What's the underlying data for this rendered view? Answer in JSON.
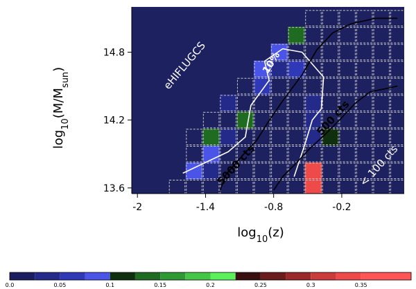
{
  "colors": {
    "background": "#1d2160",
    "outline_dashed": "#c8c8c8",
    "contour_white": "#ffffff",
    "contour_black": "#000000"
  },
  "chart_data": [
    {
      "type": "heatmap",
      "title": "",
      "xlabel": "log10(z)",
      "ylabel": "log10(M/Msun)",
      "xlim": [
        -2.05,
        0.35
      ],
      "ylim": [
        13.55,
        15.2
      ],
      "x_ticks": [
        "-2",
        "-1.4",
        "-0.8",
        "-0.2"
      ],
      "x_tick_values": [
        -2,
        -1.4,
        -0.8,
        -0.2
      ],
      "y_ticks": [
        "13.6",
        "14.2",
        "14.8"
      ],
      "y_tick_values": [
        13.6,
        14.2,
        14.8
      ],
      "grid": false,
      "cell_width_dex": 0.15,
      "cell_height_dex": 0.15,
      "fraction_cells": [
        {
          "x": -1.05,
          "y": 14.2,
          "value": 0.14
        },
        {
          "x": -1.35,
          "y": 14.05,
          "value": 0.13
        },
        {
          "x": -0.9,
          "y": 14.65,
          "value": 0.09
        },
        {
          "x": -0.75,
          "y": 14.8,
          "value": 0.09
        },
        {
          "x": -0.6,
          "y": 14.95,
          "value": 0.14
        },
        {
          "x": -0.6,
          "y": 14.65,
          "value": 0.05
        },
        {
          "x": -0.9,
          "y": 14.5,
          "value": 0.05
        },
        {
          "x": -0.75,
          "y": 14.65,
          "value": 0.03
        },
        {
          "x": -0.45,
          "y": 14.35,
          "value": 0.03
        },
        {
          "x": -0.45,
          "y": 14.2,
          "value": 0.04
        },
        {
          "x": -0.45,
          "y": 14.05,
          "value": 0.04
        },
        {
          "x": -0.3,
          "y": 14.05,
          "value": 0.11
        },
        {
          "x": -1.2,
          "y": 14.05,
          "value": 0.04
        },
        {
          "x": -1.35,
          "y": 13.9,
          "value": 0.09
        },
        {
          "x": -1.5,
          "y": 13.75,
          "value": 0.09
        },
        {
          "x": -1.35,
          "y": 13.75,
          "value": 0.04
        },
        {
          "x": -1.2,
          "y": 14.35,
          "value": 0.04
        },
        {
          "x": -0.45,
          "y": 13.75,
          "value": 0.33
        },
        {
          "x": -0.45,
          "y": 13.6,
          "value": 0.33
        }
      ],
      "outlined_region_bounds": {
        "note": "dashed outlined bins follow the observed-cluster staircase",
        "row_min_x": [
          {
            "y": 13.6,
            "x_min": -1.65
          },
          {
            "y": 13.75,
            "x_min": -1.5
          },
          {
            "y": 13.9,
            "x_min": -1.5
          },
          {
            "y": 14.05,
            "x_min": -1.5
          },
          {
            "y": 14.2,
            "x_min": -1.35
          },
          {
            "y": 14.35,
            "x_min": -1.2
          },
          {
            "y": 14.5,
            "x_min": -1.05
          },
          {
            "y": 14.65,
            "x_min": -0.9
          },
          {
            "y": 14.8,
            "x_min": -0.75
          },
          {
            "y": 14.95,
            "x_min": -0.6
          },
          {
            "y": 15.1,
            "x_min": -0.45
          }
        ],
        "x_max": 0.3
      },
      "contours": [
        {
          "label": "10%",
          "color": "white",
          "points": [
            [
              -1.6,
              13.73
            ],
            [
              -1.2,
              13.92
            ],
            [
              -1.05,
              14.05
            ],
            [
              -1.0,
              14.33
            ],
            [
              -0.84,
              14.55
            ],
            [
              -0.88,
              14.72
            ],
            [
              -0.72,
              14.83
            ],
            [
              -0.55,
              14.8
            ],
            [
              -0.36,
              14.58
            ],
            [
              -0.38,
              14.3
            ],
            [
              -0.46,
              14.2
            ],
            [
              -0.52,
              14.0
            ],
            [
              -0.62,
              13.7
            ]
          ]
        },
        {
          "label": "5000 cts",
          "color": "black",
          "points": [
            [
              -1.27,
              13.58
            ],
            [
              -1.22,
              13.72
            ],
            [
              -1.08,
              13.88
            ],
            [
              -0.95,
              14.02
            ],
            [
              -0.85,
              14.18
            ],
            [
              -0.72,
              14.37
            ],
            [
              -0.55,
              14.6
            ],
            [
              -0.42,
              14.82
            ],
            [
              -0.28,
              14.97
            ],
            [
              -0.12,
              15.05
            ],
            [
              0.1,
              15.1
            ],
            [
              0.29,
              15.1
            ]
          ]
        },
        {
          "label": "500 cts",
          "color": "black",
          "points": [
            [
              -0.8,
              13.58
            ],
            [
              -0.72,
              13.7
            ],
            [
              -0.6,
              13.82
            ],
            [
              -0.48,
              13.95
            ],
            [
              -0.35,
              14.07
            ],
            [
              -0.22,
              14.2
            ],
            [
              -0.08,
              14.35
            ],
            [
              0.05,
              14.45
            ],
            [
              0.2,
              14.48
            ],
            [
              0.29,
              14.5
            ]
          ]
        }
      ],
      "annotations": [
        "eHIFLUGCS",
        "10%",
        "5000 cts",
        "500 cts",
        "< 100 cts"
      ]
    },
    {
      "type": "colorbar",
      "orientation": "horizontal",
      "range": [
        0,
        0.4
      ],
      "tick_labels": [
        "0.0",
        "0.05",
        "0.1",
        "0.15",
        "0.2",
        "0.25",
        "0.3",
        "0.35"
      ],
      "tick_values": [
        0,
        0.05,
        0.1,
        0.15,
        0.2,
        0.25,
        0.3,
        0.35
      ],
      "segments": [
        {
          "from": 0.0,
          "to": 0.025,
          "color": "#1b1f62"
        },
        {
          "from": 0.025,
          "to": 0.05,
          "color": "#242a8a"
        },
        {
          "from": 0.05,
          "to": 0.075,
          "color": "#2f38b6"
        },
        {
          "from": 0.075,
          "to": 0.1,
          "color": "#4a55e8"
        },
        {
          "from": 0.1,
          "to": 0.125,
          "color": "#0f2f0f"
        },
        {
          "from": 0.125,
          "to": 0.15,
          "color": "#1f6b22"
        },
        {
          "from": 0.15,
          "to": 0.175,
          "color": "#2f9a33"
        },
        {
          "from": 0.175,
          "to": 0.2,
          "color": "#46c646"
        },
        {
          "from": 0.2,
          "to": 0.225,
          "color": "#5cf05c"
        },
        {
          "from": 0.225,
          "to": 0.25,
          "color": "#3a0f0f"
        },
        {
          "from": 0.25,
          "to": 0.275,
          "color": "#6b1c1c"
        },
        {
          "from": 0.275,
          "to": 0.3,
          "color": "#9a2a2a"
        },
        {
          "from": 0.3,
          "to": 0.325,
          "color": "#cc3b3b"
        },
        {
          "from": 0.325,
          "to": 0.35,
          "color": "#ef4a4a"
        },
        {
          "from": 0.35,
          "to": 0.4,
          "color": "#ff5555"
        }
      ]
    }
  ]
}
